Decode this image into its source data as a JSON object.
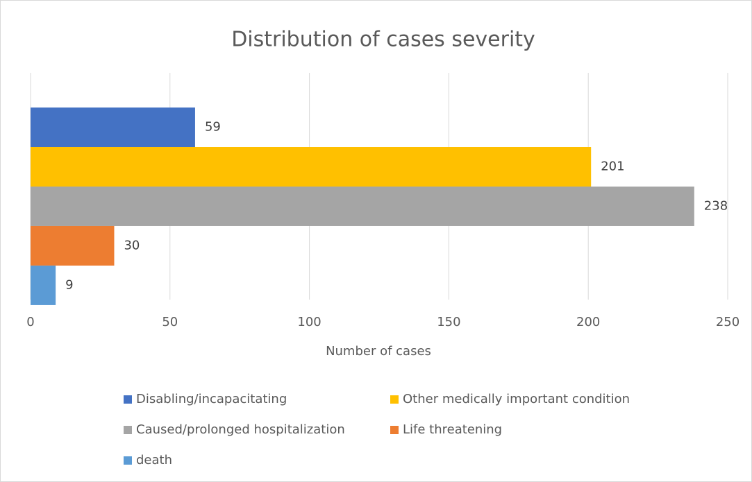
{
  "chart_data": {
    "type": "bar",
    "orientation": "horizontal",
    "title": "Distribution of cases severity",
    "x_label": "Number of cases",
    "categories": [
      null
    ],
    "series": [
      {
        "name": "Disabling/incapacitating",
        "color": "#4472c4",
        "values": [
          59
        ]
      },
      {
        "name": "Other medically important condition",
        "color": "#ffc000",
        "values": [
          201
        ]
      },
      {
        "name": "Caused/prolonged hospitalization",
        "color": "#a5a5a5",
        "values": [
          238
        ]
      },
      {
        "name": "Life threatening",
        "color": "#ed7d31",
        "values": [
          30
        ]
      },
      {
        "name": "death",
        "color": "#5b9bd5",
        "values": [
          9
        ]
      }
    ],
    "xlim": [
      0,
      250
    ],
    "xticks": [
      0,
      50,
      100,
      150,
      200,
      250
    ],
    "grid": true,
    "data_labels": true,
    "legend": "bottom"
  }
}
